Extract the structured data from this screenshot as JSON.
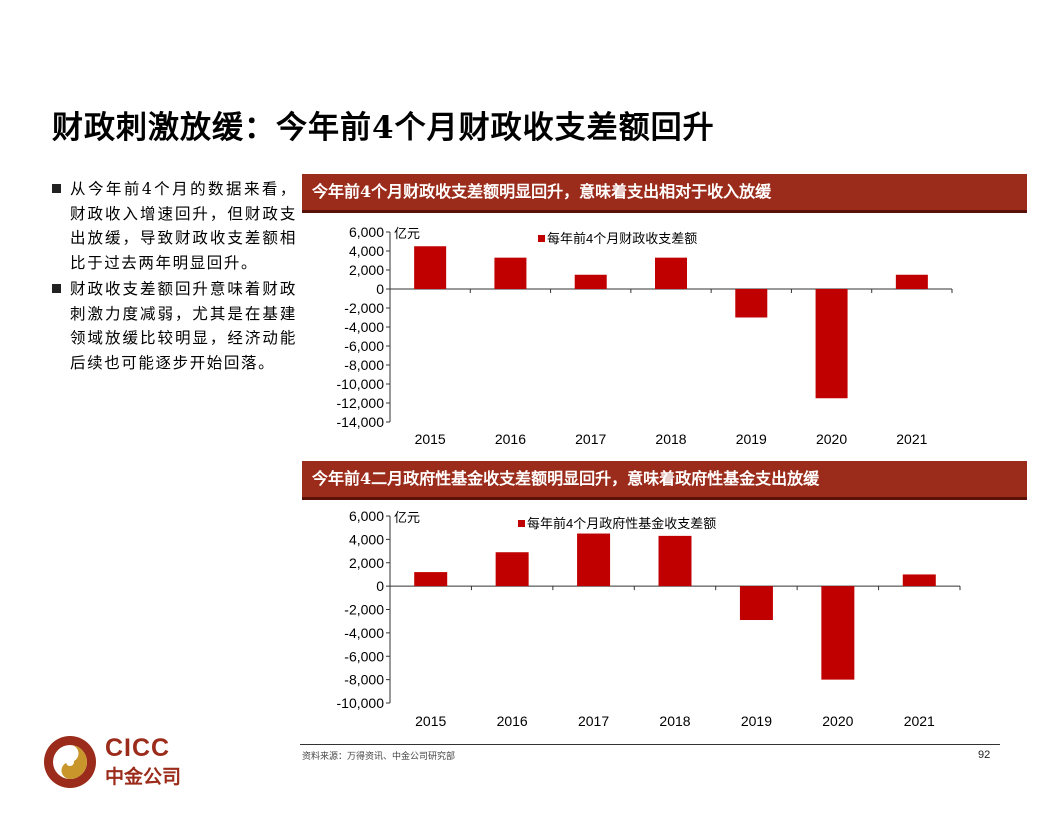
{
  "page": {
    "title": "财政刺激放缓：今年前4个月财政收支差额回升",
    "source": "资料来源：万得资讯、中金公司研究部",
    "page_number": "92"
  },
  "bullets": [
    "从今年前4个月的数据来看，财政收入增速回升，但财政支出放缓，导致财政收支差额相比于过去两年明显回升。",
    "财政收支差额回升意味着财政刺激力度减弱，尤其是在基建领域放缓比较明显，经济动能后续也可能逐步开始回落。"
  ],
  "logo": {
    "en": "CICC",
    "cn": "中金公司"
  },
  "colors": {
    "header_bg": "#9b2b1a",
    "bar": "#c00000",
    "brand": "#9b2b1a"
  },
  "panels": [
    {
      "header": "今年前4个月财政收支差额明显回升，意味着支出相对于收入放缓"
    },
    {
      "header": "今年前4二月政府性基金收支差额明显回升，意味着政府性基金支出放缓"
    }
  ],
  "chart_data": [
    {
      "type": "bar",
      "categories": [
        "2015",
        "2016",
        "2017",
        "2018",
        "2019",
        "2020",
        "2021"
      ],
      "values": [
        4500,
        3300,
        1500,
        3300,
        -3000,
        -11500,
        1500
      ],
      "ylabel": "亿元",
      "legend": "每年前4个月财政收支差额",
      "ylim": [
        -14000,
        6000
      ],
      "yticks": [
        6000,
        4000,
        2000,
        0,
        -2000,
        -4000,
        -6000,
        -8000,
        -10000,
        -12000,
        -14000
      ],
      "ytick_labels": [
        "6,000",
        "4,000",
        "2,000",
        "0",
        "-2,000",
        "-4,000",
        "-6,000",
        "-8,000",
        "-10,000",
        "-12,000",
        "-14,000"
      ]
    },
    {
      "type": "bar",
      "categories": [
        "2015",
        "2016",
        "2017",
        "2018",
        "2019",
        "2020",
        "2021"
      ],
      "values": [
        1200,
        2900,
        4500,
        4300,
        -2900,
        -8000,
        1000
      ],
      "ylabel": "亿元",
      "legend": "每年前4个月政府性基金收支差额",
      "ylim": [
        -10000,
        6000
      ],
      "yticks": [
        6000,
        4000,
        2000,
        0,
        -2000,
        -4000,
        -6000,
        -8000,
        -10000
      ],
      "ytick_labels": [
        "6,000",
        "4,000",
        "2,000",
        "0",
        "-2,000",
        "-4,000",
        "-6,000",
        "-8,000",
        "-10,000"
      ]
    }
  ]
}
